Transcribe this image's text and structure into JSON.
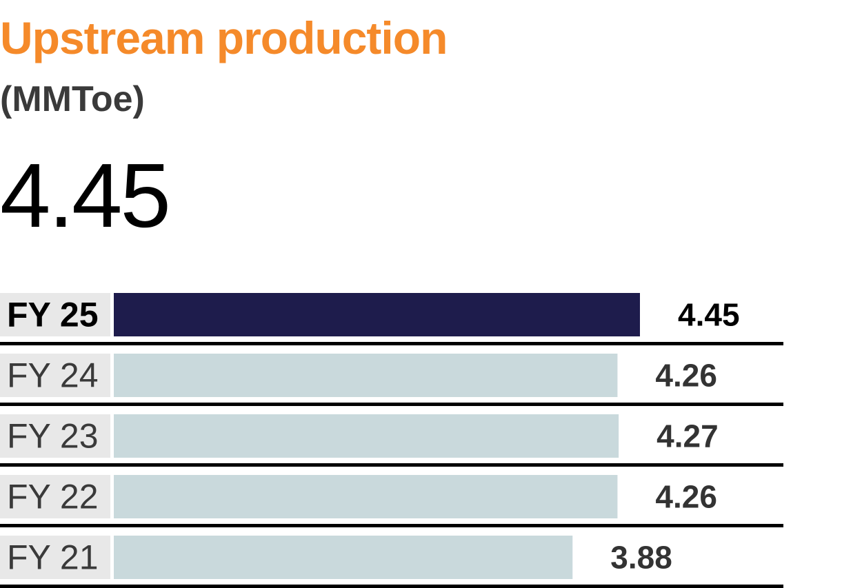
{
  "chart_data": {
    "type": "bar",
    "orientation": "horizontal",
    "title": "Upstream production",
    "unit": "(MMToe)",
    "headline_value": "4.45",
    "categories": [
      "FY 25",
      "FY 24",
      "FY 23",
      "FY 22",
      "FY 21"
    ],
    "values": [
      4.45,
      4.26,
      4.27,
      4.26,
      3.88
    ],
    "value_labels": [
      "4.45",
      "4.26",
      "4.27",
      "4.26",
      "3.88"
    ],
    "highlight_index": 0,
    "xlim": [
      0,
      4.45
    ],
    "grid": false,
    "colors": {
      "title": "#f58a2a",
      "highlight_bar": "#1e1c4c",
      "bar": "#c9d9dc",
      "label_bg": "#e8e8e8",
      "divider": "#000000",
      "value_text": "#333333",
      "category_text": "#3a3a3a",
      "highlight_text": "#000000"
    }
  }
}
